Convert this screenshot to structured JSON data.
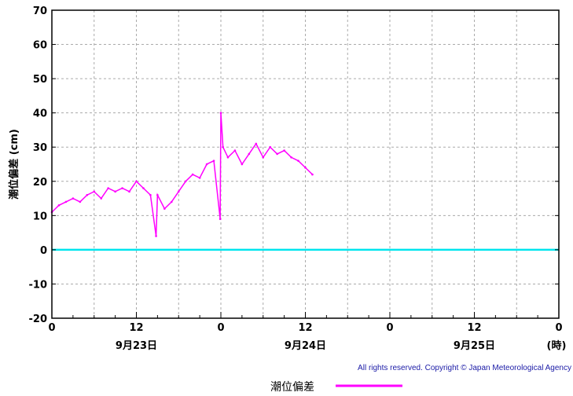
{
  "chart_data": {
    "type": "line",
    "ylabel": "潮位偏差 (cm)",
    "ylim": [
      -20,
      70
    ],
    "yticks": [
      -20,
      -10,
      0,
      10,
      20,
      30,
      40,
      50,
      60,
      70
    ],
    "xlim_hours": [
      0,
      72
    ],
    "x_tick_labels": [
      {
        "hour": 0,
        "text": "0"
      },
      {
        "hour": 12,
        "text": "12"
      },
      {
        "hour": 24,
        "text": "0"
      },
      {
        "hour": 36,
        "text": "12"
      },
      {
        "hour": 48,
        "text": "0"
      },
      {
        "hour": 60,
        "text": "12"
      },
      {
        "hour": 72,
        "text": "0"
      }
    ],
    "date_labels": [
      {
        "hour": 12,
        "text": "9月23日"
      },
      {
        "hour": 36,
        "text": "9月24日"
      },
      {
        "hour": 60,
        "text": "9月25日"
      }
    ],
    "x_unit_label": "(時)",
    "grid": true,
    "reference_line": {
      "y": 0,
      "color": "#00e5ee"
    },
    "series": [
      {
        "name": "潮位偏差",
        "color": "#ff00ff",
        "x": [
          0,
          1,
          2,
          3,
          4,
          5,
          6,
          7,
          8,
          9,
          10,
          11,
          12,
          13,
          14,
          14.8,
          15,
          16,
          17,
          18,
          19,
          20,
          21,
          22,
          23,
          23.9,
          24,
          24.3,
          25,
          26,
          27,
          28,
          29,
          30,
          31,
          32,
          33,
          34,
          35,
          36,
          37
        ],
        "y": [
          11,
          13,
          14,
          15,
          14,
          16,
          17,
          15,
          18,
          17,
          18,
          17,
          20,
          18,
          16,
          4,
          16,
          12,
          14,
          17,
          20,
          22,
          21,
          25,
          26,
          9,
          40,
          30,
          27,
          29,
          25,
          28,
          31,
          27,
          30,
          28,
          29,
          27,
          26,
          24,
          22
        ]
      }
    ],
    "legend": {
      "position": "bottom-center"
    }
  },
  "copyright": "All rights reserved. Copyright © Japan Meteorological Agency"
}
